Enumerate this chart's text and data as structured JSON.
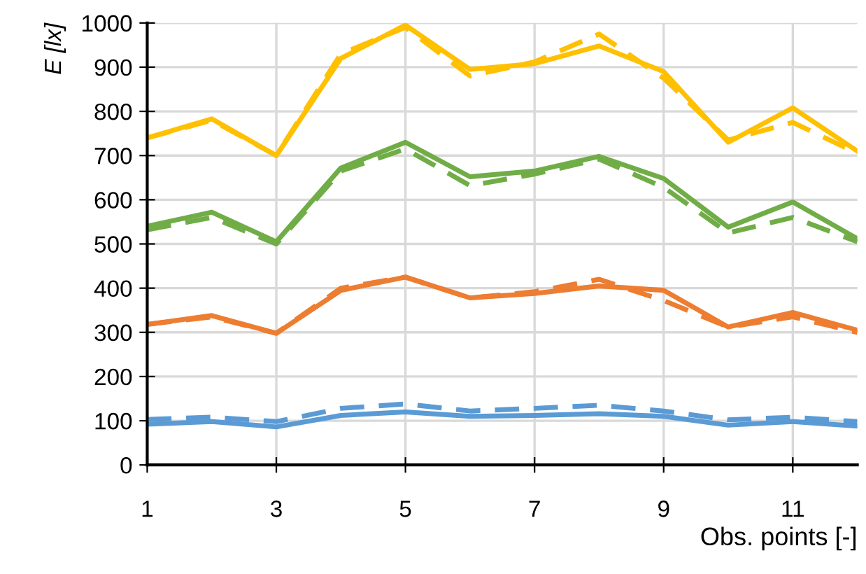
{
  "chart_data": {
    "type": "line",
    "xlabel": "Obs. points [-]",
    "ylabel": "E [lx]",
    "x": [
      1,
      2,
      3,
      4,
      5,
      6,
      7,
      8,
      9,
      10,
      11,
      12
    ],
    "xlim": [
      1,
      12
    ],
    "xticks": [
      1,
      3,
      5,
      7,
      9,
      11
    ],
    "ylim": [
      0,
      1000
    ],
    "yticks": [
      0,
      100,
      200,
      300,
      400,
      500,
      600,
      700,
      800,
      900,
      1000
    ],
    "grid": true,
    "marker": "none",
    "series": [
      {
        "color": "#ffc000",
        "line_style": "solid",
        "values": [
          740,
          783,
          700,
          920,
          995,
          895,
          908,
          948,
          890,
          730,
          808,
          710
        ]
      },
      {
        "color": "#ffc000",
        "line_style": "dashed",
        "values": [
          740,
          780,
          700,
          930,
          990,
          880,
          912,
          975,
          875,
          735,
          775,
          705
        ]
      },
      {
        "color": "#70ad47",
        "line_style": "solid",
        "values": [
          540,
          572,
          505,
          672,
          730,
          652,
          665,
          698,
          648,
          538,
          595,
          512
        ]
      },
      {
        "color": "#70ad47",
        "line_style": "dashed",
        "values": [
          532,
          560,
          500,
          665,
          715,
          632,
          658,
          692,
          628,
          525,
          560,
          505
        ]
      },
      {
        "color": "#ed7d31",
        "line_style": "solid",
        "values": [
          318,
          338,
          298,
          395,
          425,
          378,
          388,
          405,
          395,
          312,
          345,
          305
        ]
      },
      {
        "color": "#ed7d31",
        "line_style": "dashed",
        "values": [
          318,
          335,
          298,
          400,
          425,
          378,
          392,
          420,
          372,
          312,
          335,
          300
        ]
      },
      {
        "color": "#5b9bd5",
        "line_style": "solid",
        "values": [
          92,
          98,
          86,
          112,
          120,
          110,
          112,
          116,
          110,
          90,
          98,
          88
        ]
      },
      {
        "color": "#5b9bd5",
        "line_style": "dashed",
        "values": [
          103,
          108,
          98,
          128,
          138,
          122,
          128,
          135,
          122,
          102,
          108,
          98
        ]
      }
    ]
  }
}
